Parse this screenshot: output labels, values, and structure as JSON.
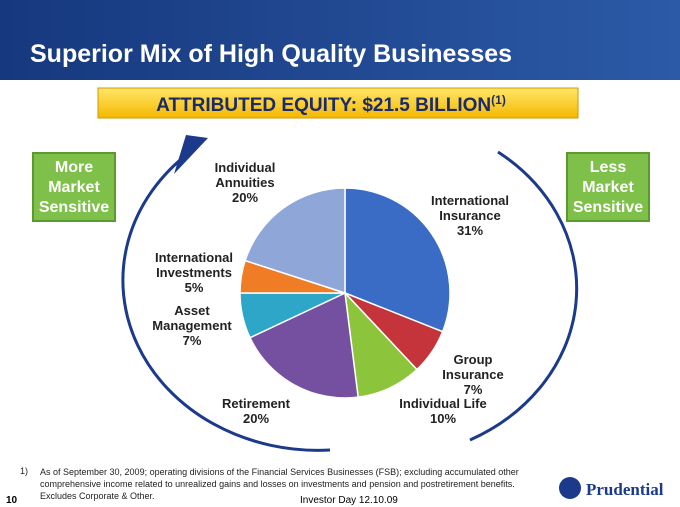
{
  "chart_data": {
    "type": "pie",
    "title": "Superior Mix of High Quality Businesses",
    "subtitle": "ATTRIBUTED EQUITY: $21.5 BILLION",
    "subtitle_note": "(1)",
    "categories": [
      "International Insurance",
      "Group Insurance",
      "Individual Life",
      "Retirement",
      "Asset Management",
      "International Investments",
      "Individual Annuities"
    ],
    "values": [
      31,
      7,
      10,
      20,
      7,
      5,
      20
    ],
    "value_labels": [
      "31%",
      "7%",
      "10%",
      "20%",
      "7%",
      "5%",
      "20%"
    ],
    "colors": [
      "#3a6cc6",
      "#c4343a",
      "#8cc43c",
      "#7650a0",
      "#2ea6c8",
      "#f07d26",
      "#8ea6d8"
    ]
  },
  "side_labels": {
    "left": "More Market Sensitive",
    "right": "Less Market Sensitive"
  },
  "footnote": {
    "marker": "1)",
    "text": "As of September 30, 2009; operating divisions of the Financial Services Businesses (FSB); excluding accumulated other comprehensive income related to unrealized gains and losses on investments and pension and postretirement benefits. Excludes Corporate & Other."
  },
  "footer": {
    "page": "10",
    "event": "Investor Day 12.10.09",
    "logo": "Prudential"
  }
}
